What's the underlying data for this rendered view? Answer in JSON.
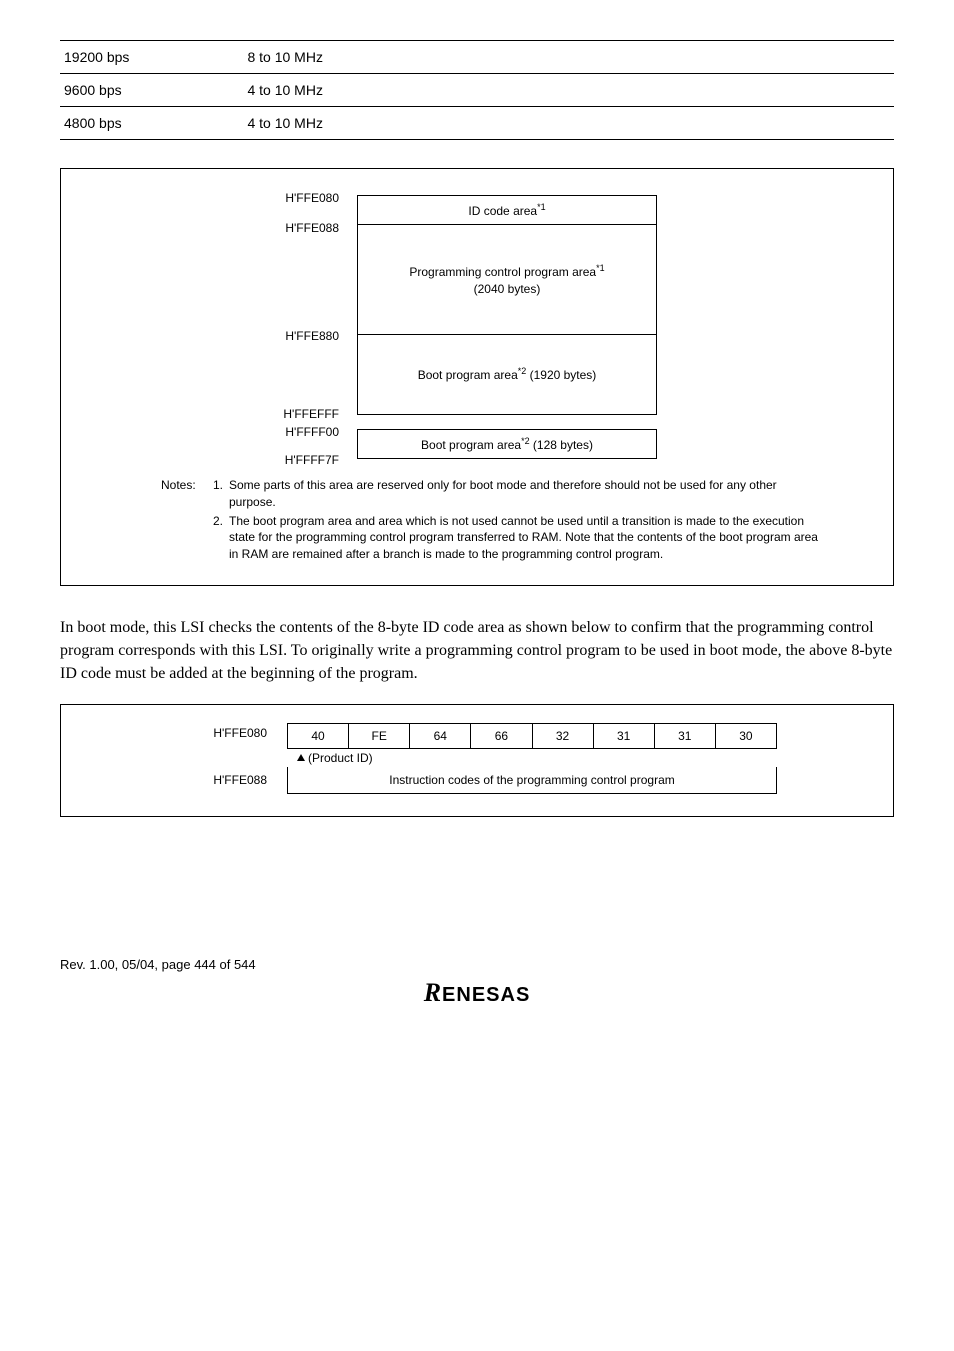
{
  "rates": {
    "rows": [
      {
        "rate": "19200 bps",
        "freq": "8 to 10 MHz"
      },
      {
        "rate": "9600 bps",
        "freq": "4 to 10 MHz"
      },
      {
        "rate": "4800 bps",
        "freq": "4 to 10 MHz"
      }
    ]
  },
  "memmap": {
    "addr1": "H'FFE080",
    "addr2": "H'FFE088",
    "addr3": "H'FFE880",
    "addr4": "H'FFEFFF",
    "addr5": "H'FFFF00",
    "addr6": "H'FFFF7F",
    "block1": "ID code area",
    "block1_sup": "*1",
    "block2a": "Programming control program area",
    "block2a_sup": "*1",
    "block2b": "(2040 bytes)",
    "block3a": "Boot program area",
    "block3a_sup": "*2",
    "block3b": " (1920 bytes)",
    "block4a": "Boot program area",
    "block4a_sup": "*2",
    "block4b": " (128 bytes)"
  },
  "notes": {
    "label": "Notes:",
    "n1": "Some parts of this area are reserved only for boot mode and therefore should not be used for any other purpose.",
    "n2": "The boot program area and area which is not used cannot be used until a transition is made to the execution state for the programming control program transferred to RAM. Note that the contents of the boot program area in RAM are remained after a branch is made to the programming control program."
  },
  "paragraph": "In boot mode, this LSI checks the contents of the 8-byte ID code area as shown below to confirm that the programming control program corresponds with this LSI. To originally write a programming control program to be used in boot mode, the above 8-byte ID code must be added at the beginning of the program.",
  "idfig": {
    "addr1": "H'FFE080",
    "addr2": "H'FFE088",
    "cells": [
      "40",
      "FE",
      "64",
      "66",
      "32",
      "31",
      "31",
      "30"
    ],
    "product_id": "(Product ID)",
    "row2": "Instruction codes of the programming control program"
  },
  "footer": {
    "rev": "Rev. 1.00, 05/04, page 444 of 544",
    "logo": "RENESAS"
  }
}
